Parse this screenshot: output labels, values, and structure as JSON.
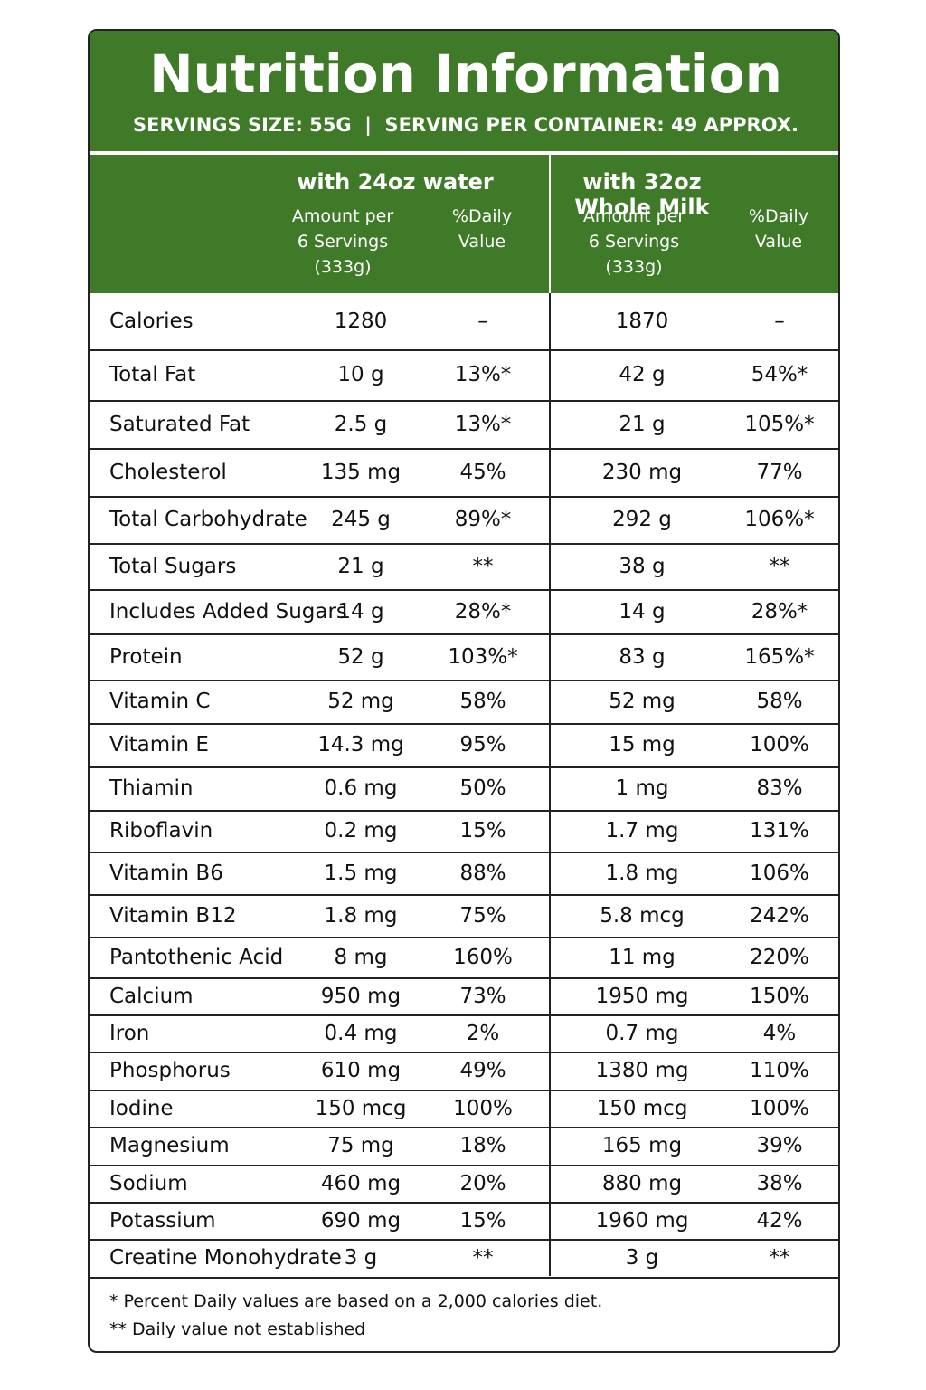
{
  "header": {
    "title": "Nutrition Information",
    "subtitle": "SERVINGS SIZE: 55G  |  SERVING PER CONTAINER: 49 APPROX."
  },
  "column_groups": [
    {
      "name": "with 24oz water",
      "amount_header": [
        "Amount per",
        "6 Servings",
        "(333g)"
      ],
      "daily_header": [
        "%Daily",
        "Value"
      ]
    },
    {
      "name": "with 32oz Whole Milk",
      "amount_header": [
        "Amount per",
        "6 Servings",
        "(333g)"
      ],
      "daily_header": [
        "%Daily",
        "Value"
      ]
    }
  ],
  "table": {
    "rows": [
      [
        "Calories",
        "1280",
        "–",
        "1870",
        "–"
      ],
      [
        "Total Fat",
        "10 g",
        "13%*",
        "42 g",
        "54%*"
      ],
      [
        "Saturated Fat",
        "2.5 g",
        "13%*",
        "21 g",
        "105%*"
      ],
      [
        "Cholesterol",
        "135 mg",
        "45%",
        "230 mg",
        "77%"
      ],
      [
        "Total Carbohydrate",
        "245 g",
        "89%*",
        "292 g",
        "106%*"
      ],
      [
        "Total Sugars",
        "21 g",
        "**",
        "38 g",
        "**"
      ],
      [
        "Includes Added Sugars",
        "14 g",
        "28%*",
        "14 g",
        "28%*"
      ],
      [
        "Protein",
        "52 g",
        "103%*",
        "83 g",
        "165%*"
      ],
      [
        "Vitamin C",
        "52 mg",
        "58%",
        "52 mg",
        "58%"
      ],
      [
        "Vitamin E",
        "14.3 mg",
        "95%",
        "15 mg",
        "100%"
      ],
      [
        "Thiamin",
        "0.6 mg",
        "50%",
        "1 mg",
        "83%"
      ],
      [
        "Riboflavin",
        "0.2 mg",
        "15%",
        "1.7 mg",
        "131%"
      ],
      [
        "Vitamin B6",
        "1.5 mg",
        "88%",
        "1.8 mg",
        "106%"
      ],
      [
        "Vitamin B12",
        "1.8 mg",
        "75%",
        "5.8 mcg",
        "242%"
      ],
      [
        "Pantothenic Acid",
        "8 mg",
        "160%",
        "11 mg",
        "220%"
      ],
      [
        "Calcium",
        "950 mg",
        "73%",
        "1950 mg",
        "150%"
      ],
      [
        "Iron",
        "0.4 mg",
        "2%",
        "0.7 mg",
        "4%"
      ],
      [
        "Phosphorus",
        "610 mg",
        "49%",
        "1380 mg",
        "110%"
      ],
      [
        "Iodine",
        "150 mcg",
        "100%",
        "150 mcg",
        "100%"
      ],
      [
        "Magnesium",
        "75 mg",
        "18%",
        "165 mg",
        "39%"
      ],
      [
        "Sodium",
        "460 mg",
        "20%",
        "880 mg",
        "38%"
      ],
      [
        "Potassium",
        "690 mg",
        "15%",
        "1960 mg",
        "42%"
      ],
      [
        "Creatine Monohydrate",
        "3 g",
        "**",
        "3 g",
        "**"
      ]
    ]
  },
  "footnotes": [
    "* Percent Daily values are based on a 2,000 calories diet.",
    "** Daily value not established"
  ]
}
